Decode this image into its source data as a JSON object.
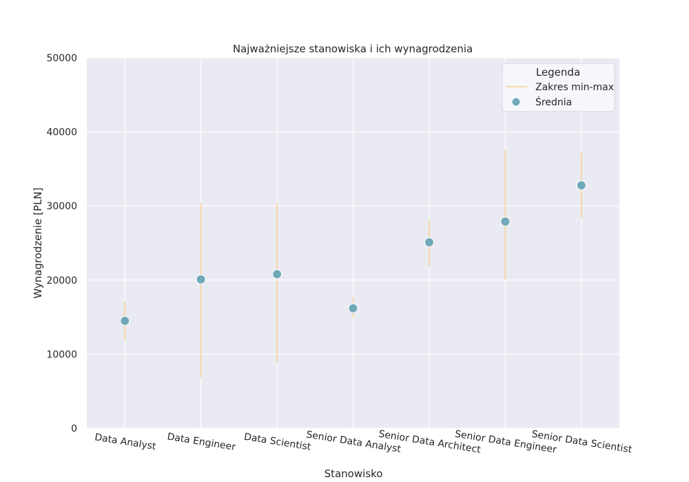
{
  "chart_data": {
    "type": "scatter",
    "title": "Najważniejsze stanowiska i ich wynagrodzenia",
    "xlabel": "Stanowisko",
    "ylabel": "Wynagrodzenie [PLN]",
    "ylim": [
      0,
      50000
    ],
    "yticks": [
      "0",
      "10000",
      "20000",
      "30000",
      "40000",
      "50000"
    ],
    "grid": true,
    "legend_position": "top-right",
    "legend": {
      "title": "Legenda",
      "range_label": "Zakres min-max",
      "mean_label": "Średnia"
    },
    "categories": [
      "Data Analyst",
      "Data Engineer",
      "Data Scientist",
      "Senior Data Analyst",
      "Senior Data Architect",
      "Senior Data Engineer",
      "Senior Data Scientist"
    ],
    "series": [
      {
        "name": "Średnia",
        "values": [
          14500,
          20100,
          20800,
          16200,
          25100,
          27900,
          32800
        ]
      },
      {
        "name": "Zakres min-max",
        "min": [
          11900,
          6900,
          8900,
          15000,
          21900,
          20000,
          28400
        ],
        "max": [
          17100,
          30400,
          30400,
          17700,
          28200,
          37600,
          37200
        ]
      }
    ],
    "colors": {
      "background": "#eaeaf2",
      "grid": "#ffffff",
      "mean_marker": "#6fa8b8",
      "range_line": "#f5d393"
    }
  }
}
